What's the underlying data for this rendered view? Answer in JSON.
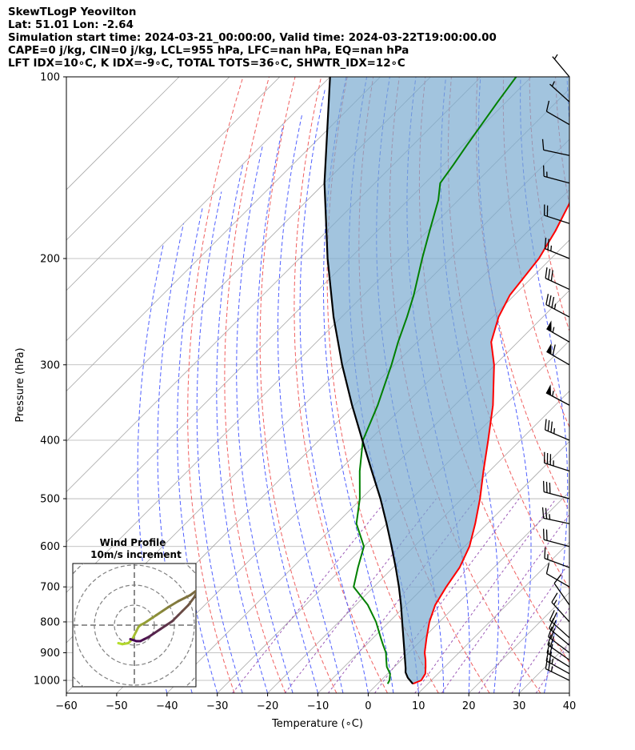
{
  "header": {
    "line1": "SkewTLogP Yeovilton",
    "line2": "Lat: 51.01   Lon: -2.64",
    "line3": "Simulation start time: 2024-03-21_00:00:00, Valid time: 2024-03-22T19:00:00.00",
    "line4": "CAPE=0 j/kg, CIN=0 j/kg, LCL=955 hPa, LFC=nan hPa, EQ=nan hPa",
    "line5": "LFT IDX=10∘C, K IDX=-9∘C, TOTAL TOTS=36∘C, SHWTR_IDX=12∘C"
  },
  "chart_data": [
    {
      "type": "line",
      "subtype": "skew-t log-p",
      "xlabel": "Temperature (∘C)",
      "ylabel": "Pressure (hPa)",
      "xlim": [
        -60,
        40
      ],
      "ylim": [
        1050,
        100
      ],
      "y_scale": "log",
      "x_ticks": [
        "−60",
        "−50",
        "−40",
        "−30",
        "−20",
        "−10",
        "0",
        "10",
        "20",
        "30",
        "40"
      ],
      "y_ticks": [
        "100",
        "200",
        "300",
        "400",
        "500",
        "600",
        "700",
        "800",
        "900",
        "1000"
      ],
      "grid": true,
      "series": [
        {
          "color": "#ff0000",
          "points": [
            [
              1013,
              7
            ],
            [
              1000,
              8
            ],
            [
              975,
              7.5
            ],
            [
              950,
              6.2
            ],
            [
              925,
              4.8
            ],
            [
              900,
              3.2
            ],
            [
              850,
              0.6
            ],
            [
              800,
              -2
            ],
            [
              750,
              -4.2
            ],
            [
              700,
              -5.6
            ],
            [
              650,
              -6.8
            ],
            [
              600,
              -9
            ],
            [
              550,
              -12.4
            ],
            [
              500,
              -16.4
            ],
            [
              450,
              -21.2
            ],
            [
              400,
              -26.4
            ],
            [
              350,
              -32.4
            ],
            [
              300,
              -40.2
            ],
            [
              275,
              -45.3
            ],
            [
              250,
              -48.8
            ],
            [
              230,
              -50.9
            ],
            [
              200,
              -52.4
            ],
            [
              180,
              -54.6
            ],
            [
              160,
              -57.6
            ],
            [
              150,
              -59.4
            ],
            [
              140,
              -61.7
            ],
            [
              130,
              -64.4
            ],
            [
              120,
              -67.9
            ],
            [
              110,
              -72.2
            ],
            [
              100,
              -76.4
            ]
          ]
        },
        {
          "color": "#008000",
          "points": [
            [
              1013,
              2
            ],
            [
              1000,
              1.7
            ],
            [
              975,
              0.5
            ],
            [
              950,
              -1.5
            ],
            [
              925,
              -3
            ],
            [
              900,
              -4.5
            ],
            [
              875,
              -6.5
            ],
            [
              850,
              -8.5
            ],
            [
              800,
              -12.6
            ],
            [
              750,
              -17.6
            ],
            [
              700,
              -24
            ],
            [
              650,
              -27
            ],
            [
              600,
              -30
            ],
            [
              550,
              -36
            ],
            [
              500,
              -40.3
            ],
            [
              450,
              -45.8
            ],
            [
              400,
              -51.3
            ],
            [
              350,
              -55.3
            ],
            [
              300,
              -60.6
            ],
            [
              275,
              -63.8
            ],
            [
              250,
              -67
            ],
            [
              230,
              -70
            ],
            [
              200,
              -75.6
            ],
            [
              180,
              -79.6
            ],
            [
              160,
              -84
            ],
            [
              150,
              -87
            ],
            [
              140,
              -88
            ],
            [
              130,
              -89.2
            ],
            [
              120,
              -90.4
            ],
            [
              110,
              -91.7
            ],
            [
              100,
              -93
            ]
          ]
        },
        {
          "color": "#000000",
          "points": [
            [
              1013,
              7
            ],
            [
              990,
              4.8
            ],
            [
              970,
              3.3
            ],
            [
              955,
              2.5
            ],
            [
              900,
              -0.8
            ],
            [
              850,
              -4
            ],
            [
              800,
              -7.4
            ],
            [
              750,
              -11
            ],
            [
              700,
              -15
            ],
            [
              650,
              -19.5
            ],
            [
              600,
              -24.5
            ],
            [
              550,
              -30
            ],
            [
              500,
              -36.2
            ],
            [
              450,
              -43.4
            ],
            [
              400,
              -51.4
            ],
            [
              350,
              -60.4
            ],
            [
              300,
              -70.4
            ],
            [
              250,
              -81.6
            ],
            [
              200,
              -94.4
            ],
            [
              150,
              -110
            ],
            [
              100,
              -130
            ]
          ]
        }
      ],
      "wind_barbs": [
        {
          "p": 1000,
          "dir": 296,
          "kt": 27
        },
        {
          "p": 975,
          "dir": 299,
          "kt": 24
        },
        {
          "p": 950,
          "dir": 302,
          "kt": 22
        },
        {
          "p": 925,
          "dir": 305,
          "kt": 21
        },
        {
          "p": 900,
          "dir": 307,
          "kt": 20
        },
        {
          "p": 875,
          "dir": 310,
          "kt": 19
        },
        {
          "p": 850,
          "dir": 312,
          "kt": 18
        },
        {
          "p": 800,
          "dir": 318,
          "kt": 16
        },
        {
          "p": 750,
          "dir": 325,
          "kt": 12
        },
        {
          "p": 700,
          "dir": 300,
          "kt": 9
        },
        {
          "p": 650,
          "dir": 290,
          "kt": 16
        },
        {
          "p": 600,
          "dir": 285,
          "kt": 22
        },
        {
          "p": 550,
          "dir": 282,
          "kt": 26
        },
        {
          "p": 500,
          "dir": 285,
          "kt": 30
        },
        {
          "p": 450,
          "dir": 288,
          "kt": 33
        },
        {
          "p": 400,
          "dir": 293,
          "kt": 36
        },
        {
          "p": 350,
          "dir": 298,
          "kt": 55
        },
        {
          "p": 300,
          "dir": 300,
          "kt": 58
        },
        {
          "p": 275,
          "dir": 300,
          "kt": 55
        },
        {
          "p": 250,
          "dir": 298,
          "kt": 35
        },
        {
          "p": 225,
          "dir": 295,
          "kt": 30
        },
        {
          "p": 200,
          "dir": 292,
          "kt": 25
        },
        {
          "p": 175,
          "dir": 288,
          "kt": 20
        },
        {
          "p": 150,
          "dir": 285,
          "kt": 16
        },
        {
          "p": 135,
          "dir": 282,
          "kt": 12
        },
        {
          "p": 120,
          "dir": 300,
          "kt": 8
        },
        {
          "p": 110,
          "dir": 312,
          "kt": 5
        },
        {
          "p": 100,
          "dir": 320,
          "kt": 3
        }
      ]
    },
    {
      "type": "line",
      "subtype": "hodograph",
      "title": "Wind Profile",
      "subtitle": "10m/s increment",
      "ring_increment_ms": 10,
      "colors": [
        "#b5de2b",
        "#440154"
      ],
      "points": [
        [
          -8,
          -9
        ],
        [
          -6,
          -9.5
        ],
        [
          -3,
          -9
        ],
        [
          -1,
          -7
        ],
        [
          0,
          -5
        ],
        [
          1,
          -3
        ],
        [
          2,
          -1
        ],
        [
          3,
          0
        ],
        [
          5,
          1
        ],
        [
          8,
          3
        ],
        [
          11,
          5
        ],
        [
          14,
          7
        ],
        [
          17,
          9
        ],
        [
          22,
          12
        ],
        [
          28,
          15
        ],
        [
          32,
          18
        ],
        [
          30,
          14
        ],
        [
          27,
          10
        ],
        [
          24,
          7
        ],
        [
          22,
          5
        ],
        [
          19,
          2
        ],
        [
          16,
          0
        ],
        [
          13,
          -2
        ],
        [
          10,
          -4
        ],
        [
          7,
          -6
        ],
        [
          5,
          -7
        ],
        [
          3,
          -8
        ],
        [
          1,
          -8
        ],
        [
          -2,
          -7
        ]
      ]
    }
  ]
}
